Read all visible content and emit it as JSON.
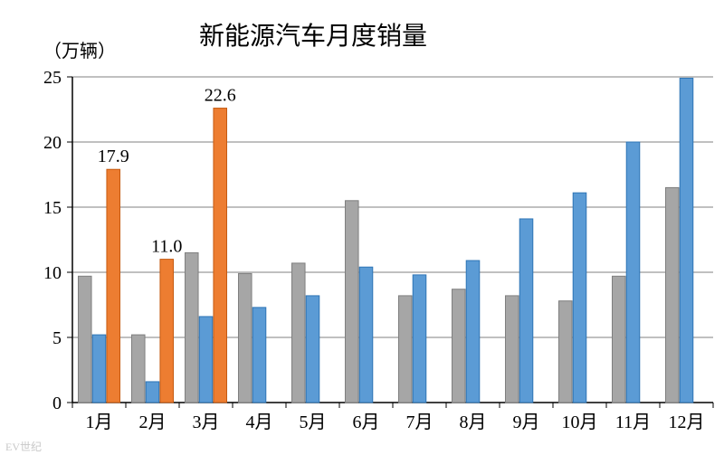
{
  "chart": {
    "type": "bar",
    "title": "新能源汽车月度销量",
    "title_fontsize": 28,
    "title_color": "#000000",
    "y_unit_label": "（万辆）",
    "y_unit_fontsize": 20,
    "categories": [
      "1月",
      "2月",
      "3月",
      "4月",
      "5月",
      "6月",
      "7月",
      "8月",
      "9月",
      "10月",
      "11月",
      "12月"
    ],
    "series": [
      {
        "name": "series-a-gray",
        "color": "#a6a6a6",
        "border_color": "#7f7f7f",
        "values": [
          9.7,
          5.2,
          11.5,
          9.9,
          10.7,
          15.5,
          8.2,
          8.7,
          8.2,
          7.8,
          9.7,
          16.5
        ]
      },
      {
        "name": "series-b-blue",
        "color": "#5b9bd5",
        "border_color": "#2e75b6",
        "values": [
          5.2,
          1.6,
          6.6,
          7.3,
          8.2,
          10.4,
          9.8,
          10.9,
          14.1,
          16.1,
          20.0,
          24.9
        ]
      },
      {
        "name": "series-c-orange",
        "color": "#ed7d31",
        "border_color": "#c55a11",
        "values": [
          17.9,
          11.0,
          22.6,
          null,
          null,
          null,
          null,
          null,
          null,
          null,
          null,
          null
        ]
      }
    ],
    "data_labels": [
      {
        "category_index": 0,
        "series_index": 2,
        "text": "17.9"
      },
      {
        "category_index": 1,
        "series_index": 2,
        "text": "11.0"
      },
      {
        "category_index": 2,
        "series_index": 2,
        "text": "22.6"
      }
    ],
    "data_label_fontsize": 20,
    "data_label_color": "#000000",
    "axis_label_fontsize": 20,
    "axis_label_color": "#000000",
    "ylim": [
      0,
      25
    ],
    "ytick_step": 5,
    "grid_color": "#808080",
    "axis_line_color": "#000000",
    "tick_len": 6,
    "background_color": "#ffffff",
    "bar_group_width": 0.78,
    "bar_gap": 0.02
  },
  "watermark": {
    "text": "EV世纪",
    "color": "#c8c8c8"
  }
}
